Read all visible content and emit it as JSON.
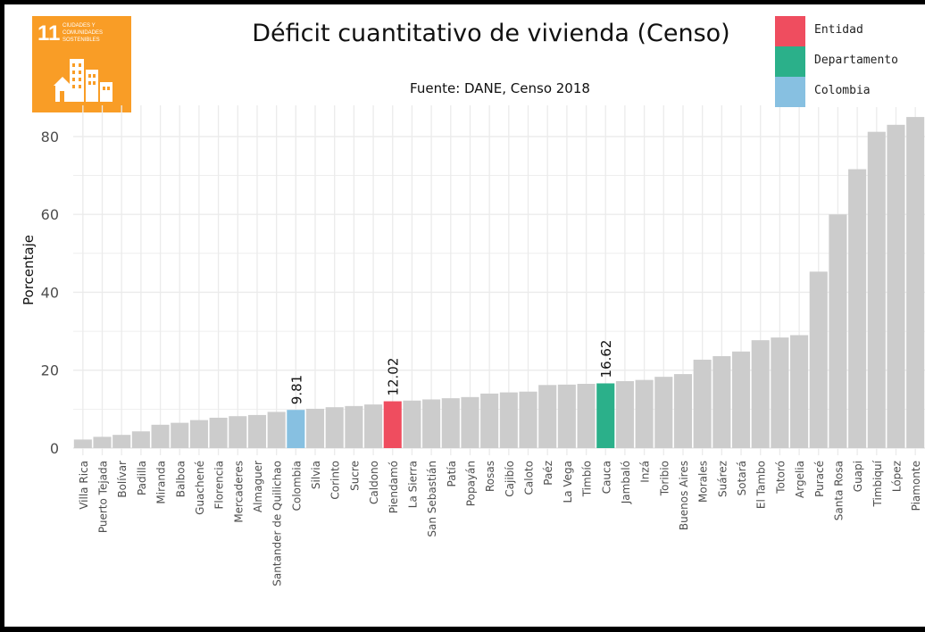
{
  "badge": {
    "number": "11",
    "text_line1": "CIUDADES Y",
    "text_line2": "COMUNIDADES",
    "text_line3": "SOSTENIBLES",
    "background": "#f99d26"
  },
  "colors": {
    "bar_default": "#cccccc",
    "entidad": "#ef4d5f",
    "departamento": "#2bb08a",
    "colombia": "#87c0e1",
    "grid": "#ebebeb"
  },
  "legend": [
    {
      "label": "Entidad",
      "color": "#ef4d5f"
    },
    {
      "label": "Departamento",
      "color": "#2bb08a"
    },
    {
      "label": "Colombia",
      "color": "#87c0e1"
    }
  ],
  "chart_data": {
    "type": "bar",
    "title": "Déficit cuantitativo de vivienda (Censo)",
    "subtitle": "Fuente: DANE, Censo 2018",
    "xlabel": "",
    "ylabel": "Porcentaje",
    "ylim": [
      0,
      88
    ],
    "yticks": [
      0,
      20,
      40,
      60,
      80
    ],
    "grid": true,
    "legend_position": "top-right",
    "categories": [
      "Villa Rica",
      "Puerto Tejada",
      "Bolívar",
      "Padilla",
      "Miranda",
      "Balboa",
      "Guachené",
      "Florencia",
      "Mercaderes",
      "Almaguer",
      "Santander de Quilichao",
      "Colombia",
      "Silvia",
      "Corinto",
      "Sucre",
      "Caldono",
      "Piendamó",
      "La Sierra",
      "San Sebastián",
      "Patía",
      "Popayán",
      "Rosas",
      "Cajibío",
      "Caloto",
      "Paéz",
      "La Vega",
      "Timbío",
      "Cauca",
      "Jambaló",
      "Inzá",
      "Toribio",
      "Buenos Aires",
      "Morales",
      "Suárez",
      "Sotará",
      "El Tambo",
      "Totoró",
      "Argelia",
      "Puracé",
      "Santa Rosa",
      "Guapi",
      "Timbiquí",
      "López",
      "Piamonte"
    ],
    "values": [
      2.2,
      2.9,
      3.4,
      4.3,
      6.0,
      6.5,
      7.2,
      7.8,
      8.2,
      8.5,
      9.3,
      9.81,
      10.1,
      10.5,
      10.8,
      11.2,
      12.02,
      12.2,
      12.5,
      12.8,
      13.1,
      14.0,
      14.3,
      14.5,
      16.2,
      16.3,
      16.5,
      16.62,
      17.2,
      17.5,
      18.3,
      19.0,
      22.7,
      23.6,
      24.8,
      27.7,
      28.4,
      29.0,
      45.3,
      60.0,
      71.6,
      81.2,
      83.0,
      85.0
    ],
    "highlights": [
      {
        "category": "Colombia",
        "group": "Colombia",
        "label": "9.81"
      },
      {
        "category": "Piendamó",
        "group": "Entidad",
        "label": "12.02"
      },
      {
        "category": "Cauca",
        "group": "Departamento",
        "label": "16.62"
      }
    ]
  }
}
